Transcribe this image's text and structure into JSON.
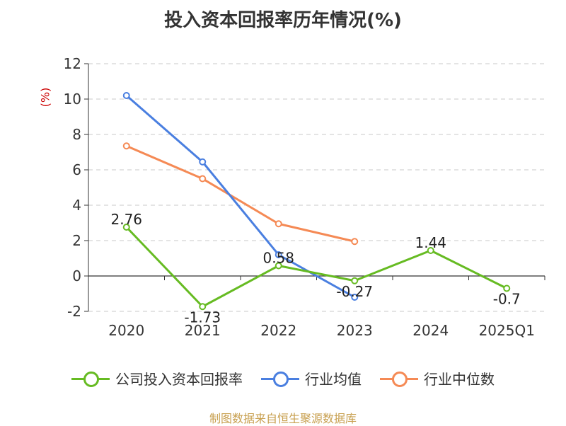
{
  "title": "投入资本回报率历年情况(%)",
  "source_note": "制图数据来自恒生聚源数据库",
  "colors": {
    "company": "#66bb22",
    "industry_avg": "#4a7fe0",
    "industry_median": "#f58a55",
    "grid": "#c8c8c8",
    "axis": "#333333",
    "ylabel": "#cc0000"
  },
  "chart_data": {
    "type": "line",
    "title": "投入资本回报率历年情况(%)",
    "ylabel": "(%)",
    "xlabel": "",
    "categories": [
      "2020",
      "2021",
      "2022",
      "2023",
      "2024",
      "2025Q1"
    ],
    "ylim": [
      -2,
      12
    ],
    "yticks": [
      -2,
      0,
      2,
      4,
      6,
      8,
      10,
      12
    ],
    "grid": true,
    "legend_position": "bottom",
    "series": [
      {
        "name": "公司投入资本回报率",
        "color_key": "company",
        "values": [
          2.76,
          -1.73,
          0.58,
          -0.27,
          1.44,
          -0.7
        ],
        "labels": [
          "2.76",
          "-1.73",
          "0.58",
          "-0.27",
          "1.44",
          "-0.7"
        ]
      },
      {
        "name": "行业均值",
        "color_key": "industry_avg",
        "values": [
          10.2,
          6.45,
          1.2,
          -1.2,
          null,
          null
        ]
      },
      {
        "name": "行业中位数",
        "color_key": "industry_median",
        "values": [
          7.35,
          5.5,
          2.95,
          1.95,
          null,
          null
        ]
      }
    ]
  }
}
